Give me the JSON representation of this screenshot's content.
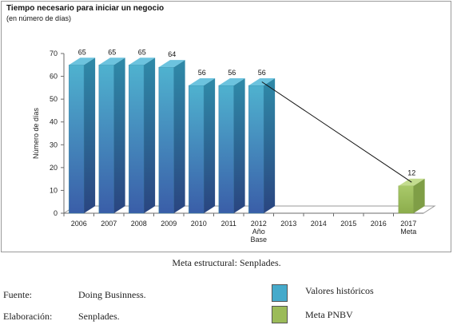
{
  "chart_title": "Tiempo necesario para iniciar un negocio",
  "chart_subtitle": "(en número de días)",
  "caption": "Meta estructural: Senplades.",
  "source": {
    "label": "Fuente:",
    "value": "Doing Businness."
  },
  "elaboration": {
    "label": "Elaboración:",
    "value": "Senplades."
  },
  "legend": [
    {
      "label": "Valores históricos",
      "color": "#45aacb"
    },
    {
      "label": "Meta PNBV",
      "color": "#9bbb59"
    }
  ],
  "chart_data": {
    "type": "bar",
    "title": "Tiempo necesario para iniciar un negocio",
    "subtitle": "(en número de días)",
    "ylabel": "Número de días",
    "xlabel": "",
    "ylim": [
      0,
      70
    ],
    "yticks": [
      0,
      10,
      20,
      30,
      40,
      50,
      60,
      70
    ],
    "categories": [
      "2006",
      "2007",
      "2008",
      "2009",
      "2010",
      "2011",
      "2012",
      "2013",
      "2014",
      "2015",
      "2016",
      "2017"
    ],
    "category_sublabels": {
      "2012": [
        "Año",
        "Base"
      ],
      "2017": [
        "Meta"
      ]
    },
    "series": [
      {
        "name": "Valores históricos",
        "color": "#45aacb",
        "values": [
          65,
          65,
          65,
          64,
          56,
          56,
          56,
          null,
          null,
          null,
          null,
          null
        ]
      },
      {
        "name": "Meta PNBV",
        "color": "#9bbb59",
        "values": [
          null,
          null,
          null,
          null,
          null,
          null,
          null,
          null,
          null,
          null,
          null,
          12
        ]
      }
    ],
    "data_labels": [
      "65",
      "65",
      "65",
      "64",
      "56",
      "56",
      "56",
      "",
      "",
      "",
      "",
      "12"
    ],
    "annotation": "line from 2012 (56) to 2017 (12)"
  }
}
